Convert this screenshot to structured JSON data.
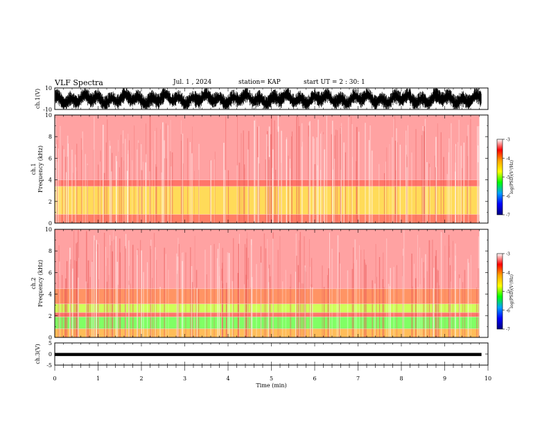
{
  "header": {
    "title": "VLF Spectra",
    "date": "Jul. 1 , 2024",
    "station": "station= KAP",
    "start": "start UT = 2 : 30: 1"
  },
  "chart_data": [
    {
      "type": "line",
      "name": "ch1-waveform",
      "ylabel": "ch.1(V)",
      "ylim": [
        -10,
        10
      ],
      "y_ticks": [
        "10",
        "-10"
      ],
      "xlim": [
        0,
        10
      ]
    },
    {
      "type": "heatmap",
      "name": "ch1-spectrogram",
      "ylabel_top": "ch.1",
      "ylabel": "Frequency (kHz)",
      "ylim": [
        0,
        10
      ],
      "y_ticks": [
        "0",
        "2",
        "4",
        "6",
        "8",
        "10"
      ],
      "xlim": [
        0,
        9.8
      ],
      "bands": [
        {
          "from": 0.0,
          "to": 0.8,
          "level": "red-orange"
        },
        {
          "from": 0.8,
          "to": 3.4,
          "level": "yellow-orange"
        },
        {
          "from": 3.4,
          "to": 4.0,
          "level": "red"
        },
        {
          "from": 4.0,
          "to": 10.0,
          "level": "light-red"
        }
      ],
      "colorbar": {
        "label": "log(PSD)(V²/Hz)",
        "ticks": [
          "-3",
          "-4",
          "-5",
          "-6",
          "-7"
        ],
        "range": [
          -7,
          -3
        ]
      }
    },
    {
      "type": "heatmap",
      "name": "ch2-spectrogram",
      "ylabel_top": "ch.2",
      "ylabel": "Frequency (kHz)",
      "ylim": [
        0,
        10
      ],
      "y_ticks": [
        "0",
        "2",
        "4",
        "6",
        "8",
        "10"
      ],
      "xlim": [
        0,
        9.8
      ],
      "bands": [
        {
          "from": 0.0,
          "to": 0.8,
          "level": "orange"
        },
        {
          "from": 0.8,
          "to": 1.9,
          "level": "green"
        },
        {
          "from": 1.9,
          "to": 2.3,
          "level": "red"
        },
        {
          "from": 2.3,
          "to": 3.1,
          "level": "green-yellow"
        },
        {
          "from": 3.1,
          "to": 4.5,
          "level": "orange-red"
        },
        {
          "from": 4.5,
          "to": 10.0,
          "level": "light-red"
        }
      ],
      "colorbar": {
        "label": "log(PSD)(V²/Hz)",
        "ticks": [
          "-3",
          "-4",
          "-5",
          "-6",
          "-7"
        ],
        "range": [
          -7,
          -3
        ]
      }
    },
    {
      "type": "line",
      "name": "ch3-waveform",
      "ylabel": "ch.3(V)",
      "ylim": [
        -5,
        5
      ],
      "y_ticks": [
        "5",
        "0",
        "-5"
      ],
      "xlim": [
        0,
        10
      ]
    }
  ],
  "x_axis": {
    "label": "Time (min)",
    "range": [
      0,
      10
    ],
    "ticks": [
      "0",
      "1",
      "2",
      "3",
      "4",
      "5",
      "6",
      "7",
      "8",
      "9",
      "10"
    ]
  },
  "colors": {
    "colorbar_stops": [
      "#ffffff",
      "#ff0000",
      "#ffa500",
      "#ffff00",
      "#00ff00",
      "#00a0ff",
      "#0000ff",
      "#000080"
    ]
  }
}
